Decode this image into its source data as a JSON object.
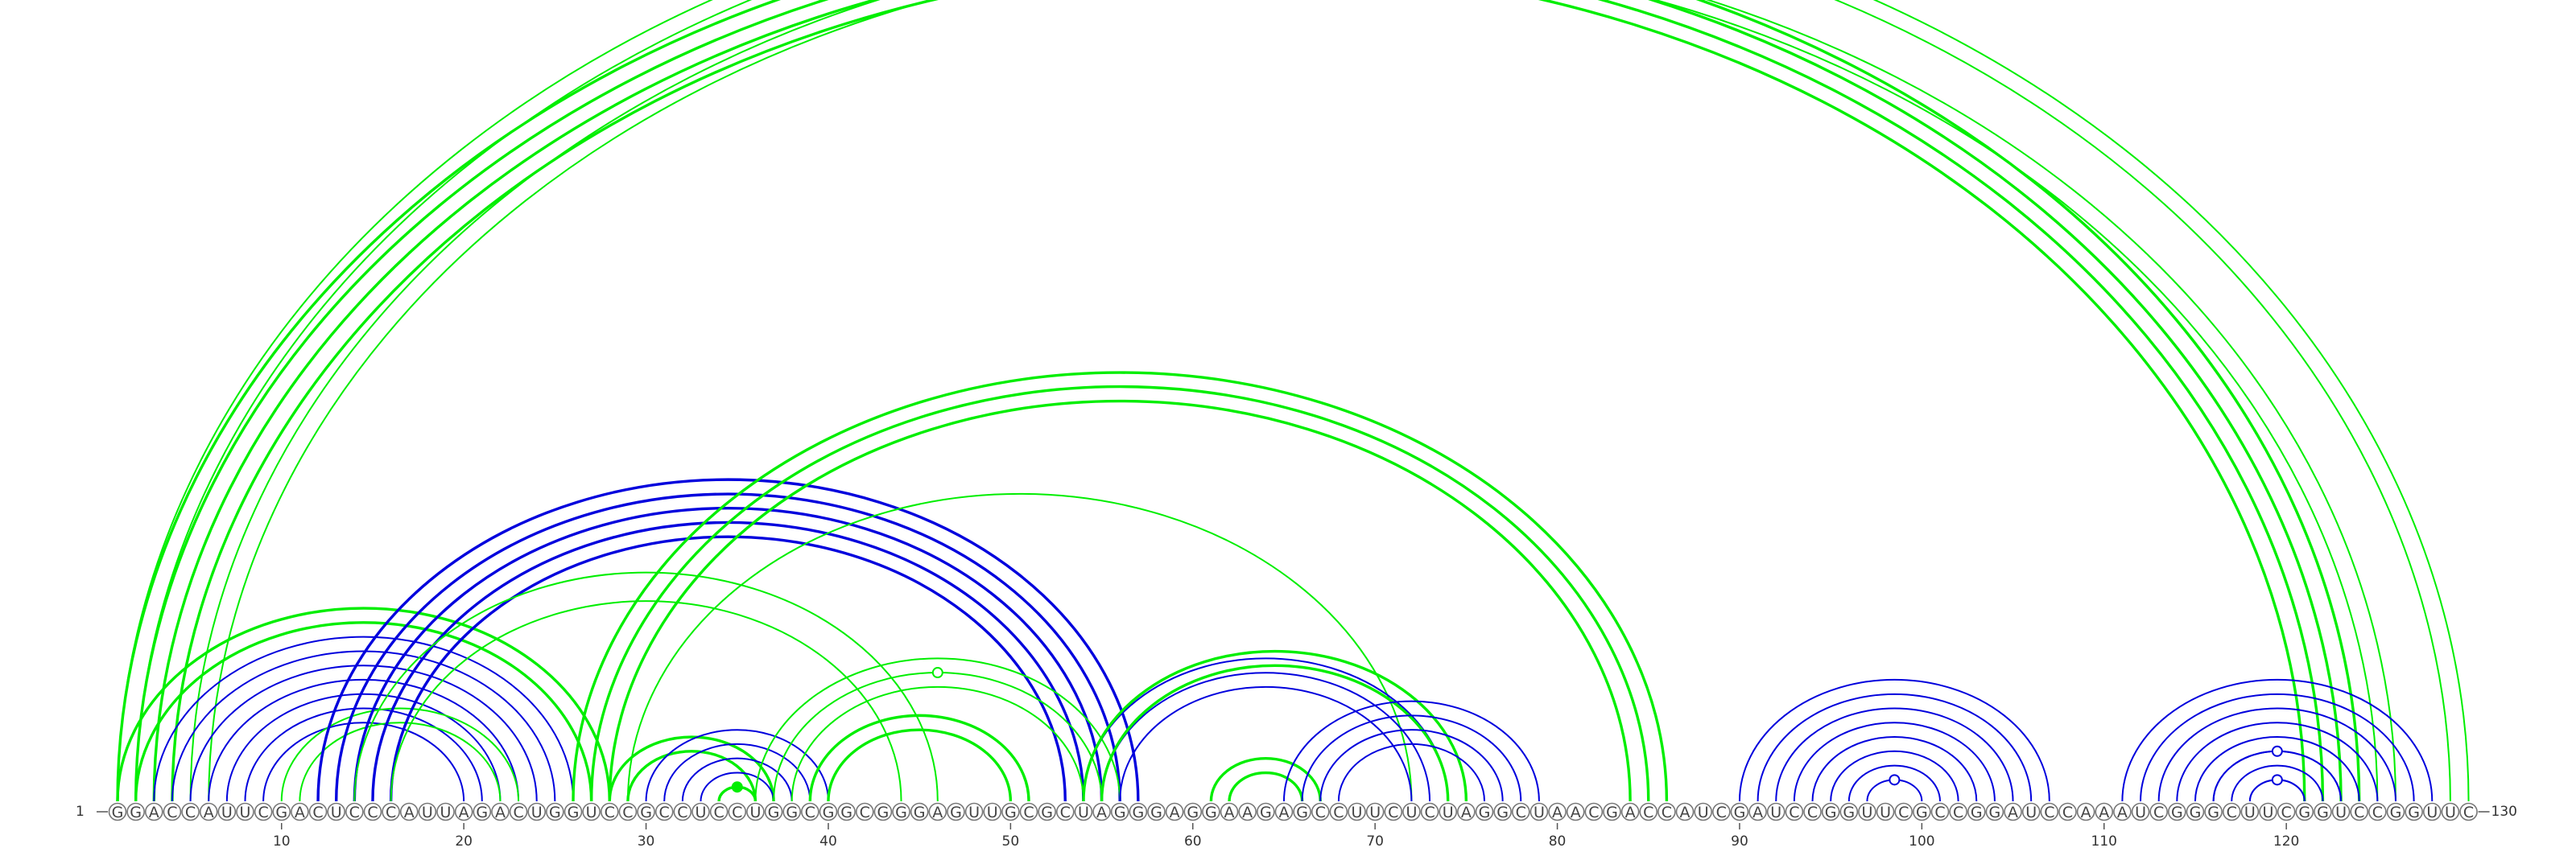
{
  "sequence": "GGACCAUUCGACUCCCAUUAGACUGGUCCGCCUCCUGGCGGCGGGAGUUGCGCUAGGGAGGAAGAGCCUUCUCUAGGCUAACGACCAUCGAUCCGGUUCGCCGGAUCCAAAUCGGGCUUCGGUCCGGUUC",
  "start_label": "1",
  "end_label": "130",
  "axis_ticks": [
    10,
    20,
    30,
    40,
    50,
    60,
    70,
    80,
    90,
    100,
    110,
    120
  ],
  "colors": {
    "green": "#00ee00",
    "blue": "#0000dd"
  },
  "arc_groups": [
    {
      "color": "green",
      "weight": "thin",
      "pairs": [
        [
          1,
          130
        ],
        [
          2,
          129
        ],
        [
          5,
          126
        ],
        [
          6,
          125
        ]
      ],
      "marker": {
        "type": "open",
        "i": 1,
        "j": 130
      }
    },
    {
      "color": "green",
      "weight": "bold",
      "pairs": [
        [
          1,
          124
        ],
        [
          2,
          123
        ],
        [
          3,
          122
        ],
        [
          4,
          121
        ]
      ]
    },
    {
      "color": "green",
      "weight": "bold",
      "pairs": [
        [
          1,
          28
        ],
        [
          2,
          27
        ]
      ]
    },
    {
      "color": "blue",
      "weight": "thin",
      "pairs": [
        [
          3,
          26
        ],
        [
          4,
          25
        ],
        [
          5,
          24
        ],
        [
          6,
          23
        ],
        [
          7,
          22
        ],
        [
          8,
          21
        ],
        [
          9,
          20
        ]
      ]
    },
    {
      "color": "green",
      "weight": "thin",
      "pairs": [
        [
          10,
          23
        ],
        [
          11,
          22
        ]
      ]
    },
    {
      "color": "blue",
      "weight": "bold",
      "pairs": [
        [
          12,
          57
        ],
        [
          13,
          56
        ],
        [
          14,
          55
        ],
        [
          15,
          54
        ],
        [
          16,
          53
        ]
      ]
    },
    {
      "color": "green",
      "weight": "thin",
      "pairs": [
        [
          14,
          46
        ],
        [
          16,
          44
        ]
      ]
    },
    {
      "color": "green",
      "weight": "bold",
      "pairs": [
        [
          26,
          86
        ],
        [
          27,
          85
        ],
        [
          28,
          84
        ]
      ]
    },
    {
      "color": "green",
      "weight": "thin",
      "pairs": [
        [
          29,
          72
        ]
      ]
    },
    {
      "color": "green",
      "weight": "bold",
      "pairs": [
        [
          28,
          37
        ],
        [
          29,
          36
        ]
      ]
    },
    {
      "color": "blue",
      "weight": "thin",
      "pairs": [
        [
          30,
          40
        ],
        [
          31,
          39
        ],
        [
          32,
          38
        ],
        [
          33,
          37
        ]
      ]
    },
    {
      "color": "green",
      "weight": "bold",
      "pairs": [
        [
          34,
          36
        ]
      ],
      "marker": {
        "type": "filled",
        "i": 34,
        "j": 36
      }
    },
    {
      "color": "green",
      "weight": "thin",
      "pairs": [
        [
          36,
          56
        ],
        [
          37,
          55
        ],
        [
          38,
          54
        ]
      ],
      "marker": {
        "type": "open",
        "i": 37,
        "j": 55
      }
    },
    {
      "color": "green",
      "weight": "bold",
      "pairs": [
        [
          39,
          51
        ],
        [
          40,
          50
        ]
      ]
    },
    {
      "color": "blue",
      "weight": "thin",
      "pairs": [
        [
          54,
          74
        ],
        [
          55,
          73
        ],
        [
          56,
          72
        ]
      ]
    },
    {
      "color": "green",
      "weight": "bold",
      "pairs": [
        [
          54,
          75
        ],
        [
          55,
          74
        ]
      ]
    },
    {
      "color": "green",
      "weight": "bold",
      "pairs": [
        [
          61,
          67
        ],
        [
          62,
          66
        ]
      ]
    },
    {
      "color": "blue",
      "weight": "thin",
      "pairs": [
        [
          65,
          79
        ],
        [
          66,
          78
        ],
        [
          67,
          77
        ],
        [
          68,
          76
        ]
      ]
    },
    {
      "color": "blue",
      "weight": "thin",
      "pairs": [
        [
          90,
          107
        ],
        [
          91,
          106
        ],
        [
          92,
          105
        ],
        [
          93,
          104
        ],
        [
          94,
          103
        ],
        [
          95,
          102
        ],
        [
          96,
          101
        ],
        [
          97,
          100
        ]
      ],
      "marker": {
        "type": "open",
        "i": 97,
        "j": 100
      }
    },
    {
      "color": "blue",
      "weight": "thin",
      "pairs": [
        [
          111,
          128
        ],
        [
          112,
          127
        ],
        [
          113,
          126
        ],
        [
          114,
          125
        ],
        [
          115,
          124
        ],
        [
          116,
          123
        ],
        [
          117,
          122
        ],
        [
          118,
          121
        ]
      ]
    },
    {
      "color": "blue",
      "weight": "thin",
      "pairs": [
        [
          116,
          123
        ]
      ],
      "marker": {
        "type": "open",
        "i": 116,
        "j": 123
      }
    },
    {
      "color": "blue",
      "weight": "thin",
      "pairs": [
        [
          118,
          121
        ]
      ],
      "marker": {
        "type": "open",
        "i": 118,
        "j": 121
      }
    }
  ]
}
